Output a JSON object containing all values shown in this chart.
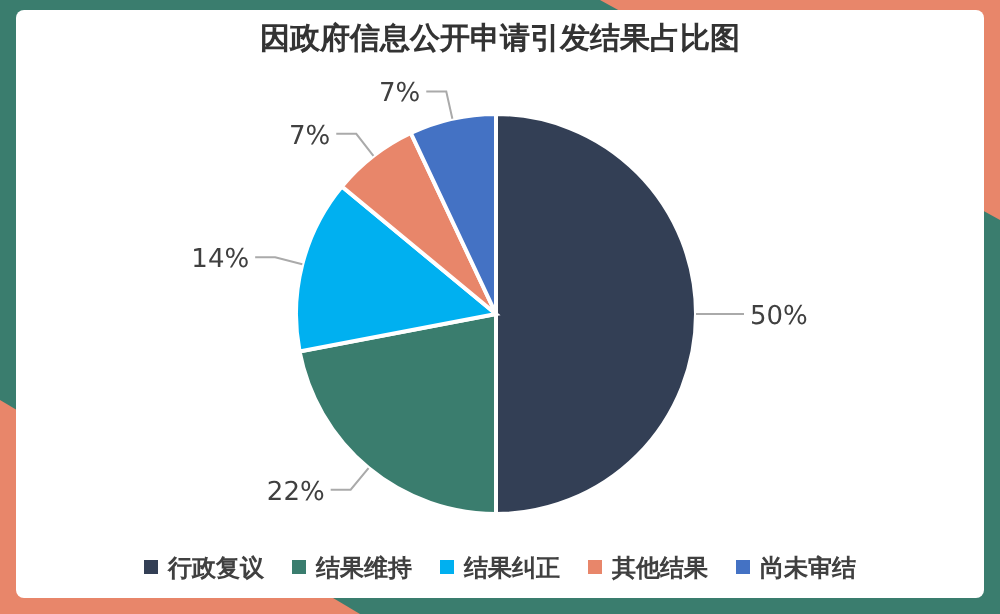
{
  "chart_data": {
    "type": "pie",
    "title": "因政府信息公开申请引发结果占比图",
    "categories": [
      "行政复议",
      "结果维持",
      "结果纠正",
      "其他结果",
      "尚未审结"
    ],
    "values": [
      50,
      22,
      14,
      7,
      7
    ],
    "colors": [
      "#333f55",
      "#3a7d6e",
      "#00b0f0",
      "#e8866a",
      "#4472c4"
    ],
    "value_labels": [
      "50%",
      "22%",
      "14%",
      "7%",
      "7%"
    ],
    "legend": "bottom"
  }
}
